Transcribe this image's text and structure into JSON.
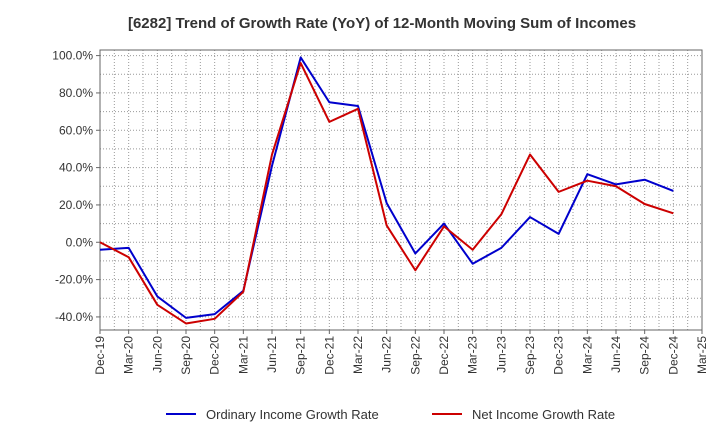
{
  "chart_data": {
    "type": "line",
    "title": "[6282]  Trend of Growth Rate (YoY) of 12-Month Moving Sum of Incomes",
    "xlabel": "",
    "ylabel": "",
    "categories": [
      "Dec-19",
      "Mar-20",
      "Jun-20",
      "Sep-20",
      "Dec-20",
      "Mar-21",
      "Jun-21",
      "Sep-21",
      "Dec-21",
      "Mar-22",
      "Jun-22",
      "Sep-22",
      "Dec-22",
      "Mar-23",
      "Jun-23",
      "Sep-23",
      "Dec-23",
      "Mar-24",
      "Jun-24",
      "Sep-24",
      "Dec-24",
      "Mar-25"
    ],
    "ylim": [
      -47,
      103
    ],
    "yticks": [
      -40,
      -20,
      0,
      20,
      40,
      60,
      80,
      100
    ],
    "ytick_labels": [
      "-40.0%",
      "-20.0%",
      "0.0%",
      "20.0%",
      "40.0%",
      "60.0%",
      "80.0%",
      "100.0%"
    ],
    "grid": true,
    "legend_position": "bottom",
    "series": [
      {
        "name": "Ordinary Income Growth Rate",
        "color": "#0000cc",
        "values": [
          -4.0,
          -3.0,
          -29.0,
          -40.5,
          -38.5,
          -26.0,
          41.0,
          99.0,
          75.0,
          73.0,
          21.0,
          -6.0,
          10.0,
          -11.5,
          -3.0,
          13.5,
          4.5,
          36.5,
          31.0,
          33.5,
          27.5,
          null
        ]
      },
      {
        "name": "Net Income Growth Rate",
        "color": "#cc0000",
        "values": [
          0.0,
          -8.0,
          -33.5,
          -43.5,
          -41.0,
          -26.5,
          47.0,
          96.0,
          64.5,
          71.5,
          9.0,
          -15.0,
          8.5,
          -4.0,
          15.0,
          47.0,
          27.0,
          33.0,
          30.0,
          20.5,
          15.5,
          null
        ]
      }
    ]
  }
}
